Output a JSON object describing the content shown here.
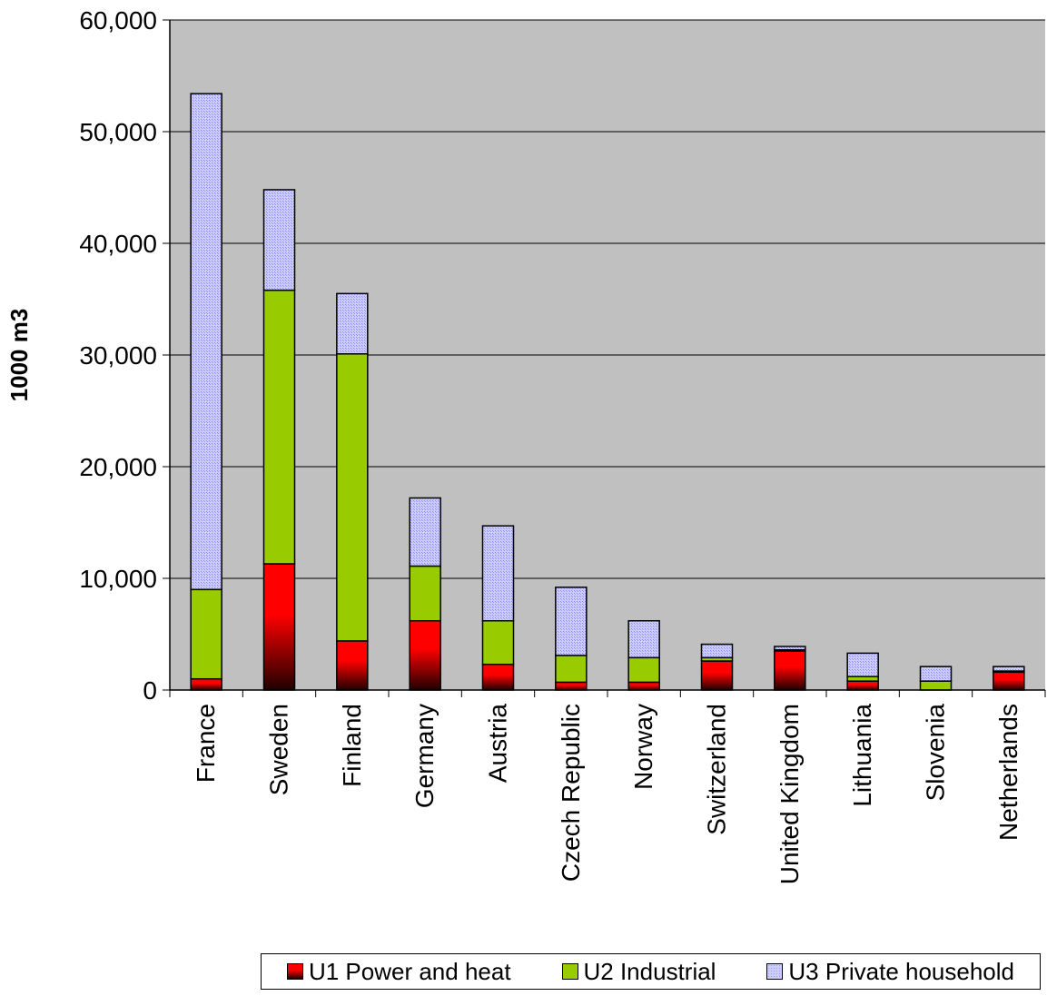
{
  "chart_data": {
    "type": "bar",
    "stacked": true,
    "categories": [
      "France",
      "Sweden",
      "Finland",
      "Germany",
      "Austria",
      "Czech Republic",
      "Norway",
      "Switzerland",
      "United Kingdom",
      "Lithuania",
      "Slovenia",
      "Netherlands"
    ],
    "series": [
      {
        "name": "U1 Power and heat",
        "values": [
          1000,
          11300,
          4400,
          6200,
          2300,
          700,
          700,
          2600,
          3500,
          800,
          0,
          1600
        ],
        "color": "#ff0000"
      },
      {
        "name": "U2 Industrial",
        "values": [
          8000,
          24500,
          25700,
          4900,
          3900,
          2400,
          2200,
          300,
          100,
          400,
          800,
          100
        ],
        "color": "#99cc00"
      },
      {
        "name": "U3 Private household",
        "values": [
          44400,
          9000,
          5400,
          6100,
          8500,
          6100,
          3300,
          1200,
          300,
          2100,
          1300,
          400
        ],
        "color": "#ccccff"
      }
    ],
    "ylabel": "1000 m3",
    "xlabel": "",
    "ylim": [
      0,
      60000
    ],
    "yticks": [
      "0",
      "10,000",
      "20,000",
      "30,000",
      "40,000",
      "50,000",
      "60,000"
    ],
    "grid": true,
    "legend": "bottom-right",
    "plot_background": "#c0c0c0"
  }
}
